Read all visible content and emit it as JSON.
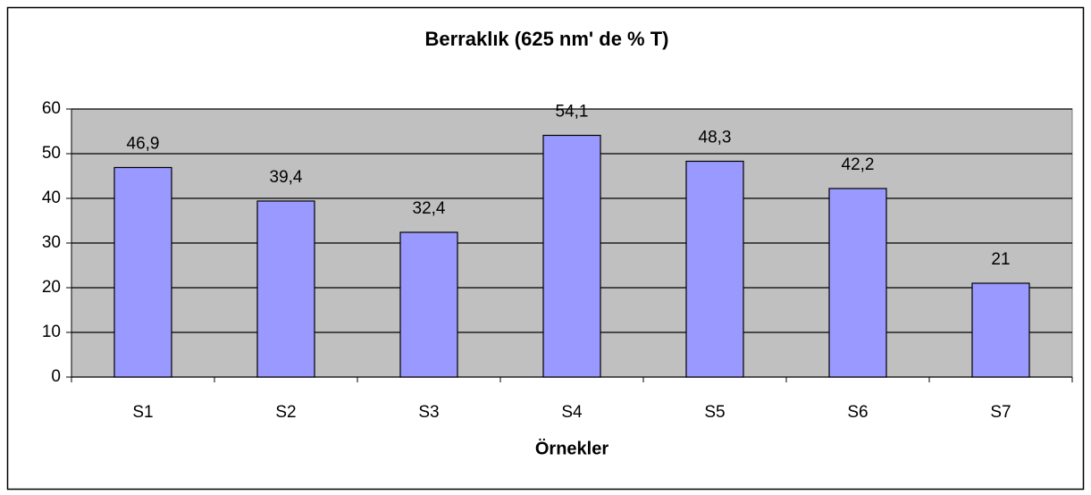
{
  "chart_data": {
    "type": "bar",
    "title": "Berraklık (625 nm' de % T)",
    "x_label": "Örnekler",
    "categories": [
      "S1",
      "S2",
      "S3",
      "S4",
      "S5",
      "S6",
      "S7"
    ],
    "values": [
      46.9,
      39.4,
      32.4,
      54.1,
      48.3,
      42.2,
      21
    ],
    "value_labels": [
      "46,9",
      "39,4",
      "32,4",
      "54,1",
      "48,3",
      "42,2",
      "21"
    ],
    "color": "#9999ff",
    "ylim": [
      0,
      60
    ],
    "yticks": [
      0,
      10,
      20,
      30,
      40,
      50,
      60
    ],
    "grid": true
  }
}
